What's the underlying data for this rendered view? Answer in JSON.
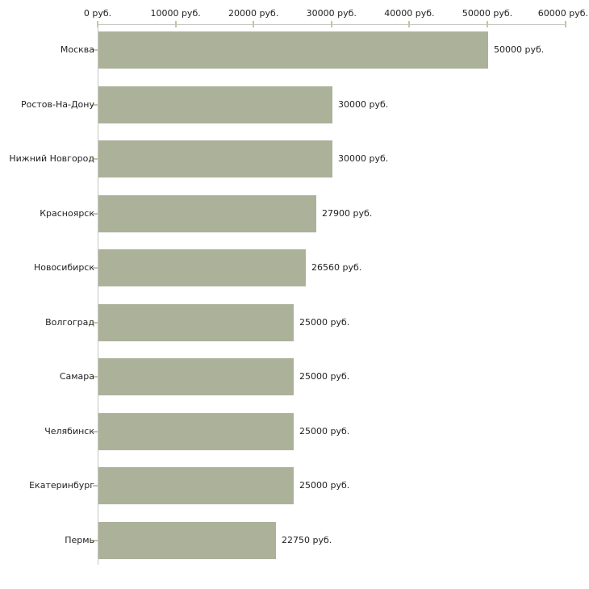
{
  "chart_data": {
    "type": "bar",
    "orientation": "horizontal",
    "title": "",
    "unit": "руб.",
    "categories": [
      "Москва",
      "Ростов-На-Дону",
      "Нижний Новгород",
      "Красноярск",
      "Новосибирск",
      "Волгоград",
      "Самара",
      "Челябинск",
      "Екатеринбург",
      "Пермь"
    ],
    "values": [
      50000,
      30000,
      30000,
      27900,
      26560,
      25000,
      25000,
      25000,
      25000,
      22750
    ],
    "value_labels": [
      "50000 руб.",
      "30000 руб.",
      "30000 руб.",
      "27900 руб.",
      "26560 руб.",
      "25000 руб.",
      "25000 руб.",
      "25000 руб.",
      "25000 руб.",
      "22750 руб."
    ],
    "x_ticks": [
      0,
      10000,
      20000,
      30000,
      40000,
      50000,
      60000
    ],
    "x_tick_labels": [
      "0 руб.",
      "10000 руб.",
      "20000 руб.",
      "30000 руб.",
      "40000 руб.",
      "50000 руб.",
      "60000 руб."
    ],
    "xlim": [
      0,
      60000
    ],
    "grid": false,
    "legend": null,
    "colors": {
      "bar": "#acb29a",
      "axis": "#c6c6c1",
      "tick": "#c8c5a0",
      "text": "#1f1f1f",
      "background": "#ffffff"
    }
  }
}
